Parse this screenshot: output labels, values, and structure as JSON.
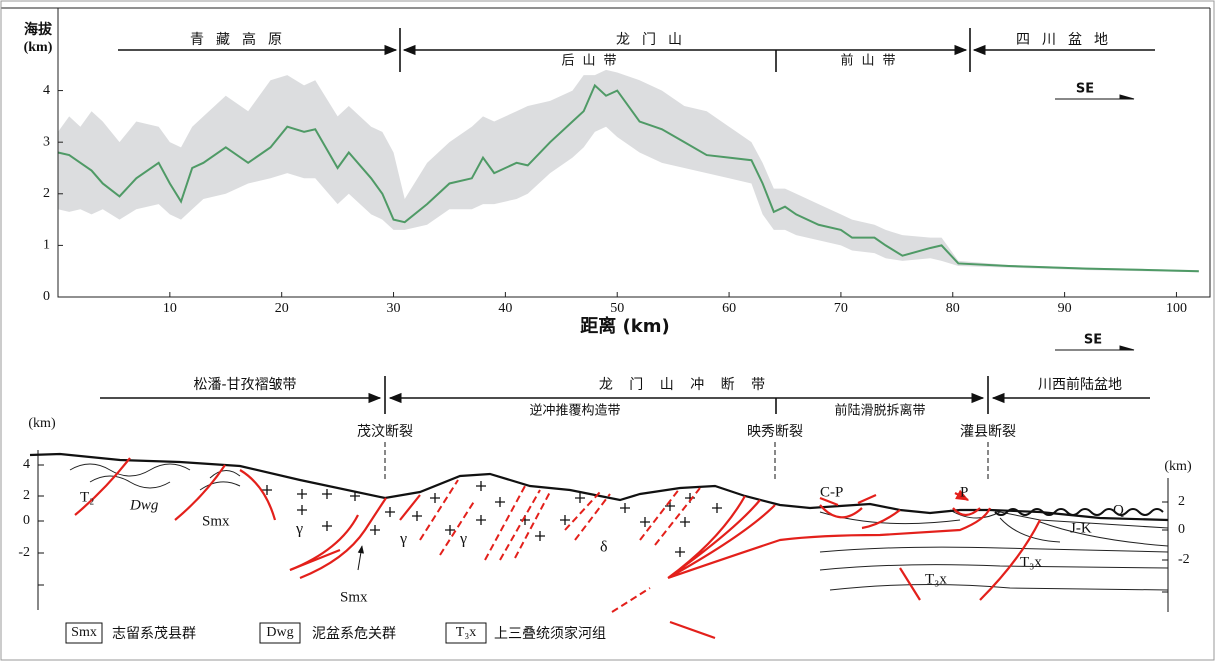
{
  "chart_data": {
    "type": "line",
    "y_label": [
      "海拔",
      "(km)"
    ],
    "x_label": "距离  (km)",
    "regions": [
      "青藏高原",
      "龙门山",
      "四川盆地"
    ],
    "subregions": [
      "后山带",
      "前山带"
    ],
    "direction": "SE",
    "x": [
      0,
      1,
      2,
      3,
      4,
      5.5,
      7,
      9,
      10,
      11,
      12,
      13,
      15,
      17,
      19,
      20.5,
      22,
      23,
      25,
      26,
      28,
      29,
      30,
      31,
      33,
      35,
      37,
      38,
      39,
      41,
      42,
      44,
      46,
      47,
      48,
      49,
      50,
      52,
      54,
      56,
      58,
      60,
      62,
      63,
      64,
      65,
      66,
      68,
      70,
      71,
      73,
      74,
      75.5,
      78,
      79,
      80.5,
      85,
      92,
      102
    ],
    "values": [
      2.8,
      2.75,
      2.6,
      2.45,
      2.2,
      1.95,
      2.3,
      2.6,
      2.2,
      1.85,
      2.5,
      2.6,
      2.9,
      2.6,
      2.9,
      3.3,
      3.2,
      3.25,
      2.5,
      2.8,
      2.3,
      2.0,
      1.5,
      1.45,
      1.8,
      2.2,
      2.3,
      2.7,
      2.4,
      2.6,
      2.55,
      3.0,
      3.4,
      3.6,
      4.1,
      3.9,
      4.0,
      3.4,
      3.25,
      3.0,
      2.75,
      2.7,
      2.65,
      2.2,
      1.65,
      1.75,
      1.6,
      1.4,
      1.3,
      1.15,
      1.15,
      1.0,
      0.8,
      0.95,
      1.0,
      0.65,
      0.6,
      0.55,
      0.5
    ],
    "band": {
      "upper": [
        3.2,
        3.5,
        3.3,
        3.6,
        3.4,
        3.0,
        3.4,
        3.3,
        3.0,
        2.9,
        3.3,
        3.5,
        3.9,
        3.6,
        4.2,
        4.3,
        4.1,
        4.2,
        3.5,
        3.7,
        3.3,
        3.2,
        2.8,
        1.9,
        2.6,
        3.0,
        3.3,
        3.5,
        3.4,
        3.6,
        3.7,
        3.8,
        4.0,
        4.3,
        4.3,
        4.4,
        4.35,
        4.2,
        4.0,
        3.7,
        3.6,
        3.3,
        3.0,
        2.6,
        2.1,
        2.1,
        2.0,
        1.8,
        1.6,
        1.5,
        1.4,
        1.3,
        1.2,
        1.15,
        1.15,
        0.7,
        0.62,
        0.57,
        0.52
      ],
      "lower": [
        1.7,
        1.65,
        1.7,
        1.6,
        1.7,
        1.5,
        1.7,
        1.8,
        1.6,
        1.5,
        1.7,
        1.9,
        2.0,
        2.2,
        2.3,
        2.4,
        2.3,
        2.3,
        1.8,
        2.0,
        1.6,
        1.5,
        1.3,
        1.3,
        1.4,
        1.7,
        1.7,
        1.8,
        1.8,
        1.9,
        2.0,
        2.4,
        2.7,
        2.9,
        3.2,
        3.3,
        3.1,
        2.8,
        2.6,
        2.5,
        2.4,
        2.3,
        2.2,
        1.6,
        1.3,
        1.3,
        1.2,
        1.1,
        1.0,
        0.9,
        0.85,
        0.75,
        0.7,
        0.75,
        0.7,
        0.6,
        0.57,
        0.52,
        0.48
      ]
    },
    "color": "#4f9a66",
    "band_color": "#dcdddf",
    "xlim": [
      0,
      103
    ],
    "ylim": [
      0,
      5.6
    ],
    "xticks": [
      10,
      20,
      30,
      40,
      50,
      60,
      70,
      80,
      90,
      100
    ],
    "yticks": [
      0,
      1,
      2,
      3,
      4
    ]
  },
  "cross_section": {
    "direction": "SE",
    "regions": [
      "松潘-甘孜褶皱带",
      "龙 门 山 冲 断 带",
      "川西前陆盆地"
    ],
    "subzones": [
      "逆冲推覆构造带",
      "前陆滑脱拆离带"
    ],
    "faults": [
      "茂汶断裂",
      "映秀断裂",
      "灌县断裂"
    ],
    "axis_label": "(km)",
    "left_ticks": [
      4,
      2,
      0,
      -2
    ],
    "right_ticks": [
      2,
      0,
      -2
    ],
    "units": [
      "T₂",
      "Dwg",
      "Smx",
      "γ",
      "γ",
      "γ",
      "δ",
      "Smx",
      "C-P",
      "P",
      "J-K",
      "Q",
      "T₃x",
      "T₃x"
    ],
    "legend": [
      {
        "symbol": "Smx",
        "label": "志留系茂县群"
      },
      {
        "symbol": "Dwg",
        "label": "泥盆系危关群"
      },
      {
        "symbol": "T₃x",
        "label": "上三叠统须家河组"
      }
    ]
  }
}
